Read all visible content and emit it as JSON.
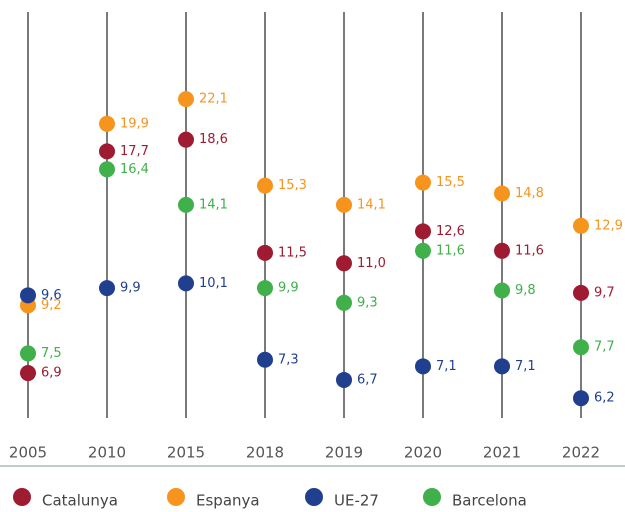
{
  "chart_data": {
    "type": "dot",
    "categories": [
      "2005",
      "2010",
      "2015",
      "2018",
      "2019",
      "2020",
      "2021",
      "2022"
    ],
    "log": true,
    "ylim": [
      5.7,
      32
    ],
    "series": [
      {
        "name": "Catalunya",
        "color": "#9e1b32",
        "values": [
          6.9,
          17.7,
          18.6,
          11.5,
          11.0,
          12.6,
          11.6,
          9.7
        ],
        "value_labels": [
          "6,9",
          "17,7",
          "18,6",
          "11,5",
          "11,0",
          "12,6",
          "11,6",
          "9,7"
        ]
      },
      {
        "name": "Espanya",
        "color": "#f7941d",
        "values": [
          9.2,
          19.9,
          22.1,
          15.3,
          14.1,
          15.5,
          14.8,
          12.9
        ],
        "value_labels": [
          "9,2",
          "19,9",
          "22,1",
          "15,3",
          "14,1",
          "15,5",
          "14,8",
          "12,9"
        ]
      },
      {
        "name": "UE-27",
        "color": "#213f8f",
        "values": [
          9.6,
          9.9,
          10.1,
          7.3,
          6.7,
          7.1,
          7.1,
          6.2
        ],
        "value_labels": [
          "9,6",
          "9,9",
          "10,1",
          "7,3",
          "6,7",
          "7,1",
          "7,1",
          "6,2"
        ]
      },
      {
        "name": "Barcelona",
        "color": "#3fb04a",
        "values": [
          7.5,
          16.4,
          14.1,
          9.9,
          9.3,
          11.6,
          9.8,
          7.7
        ],
        "value_labels": [
          "7,5",
          "16,4",
          "14,1",
          "9,9",
          "9,3",
          "11,6",
          "9,8",
          "7,7"
        ]
      }
    ]
  }
}
